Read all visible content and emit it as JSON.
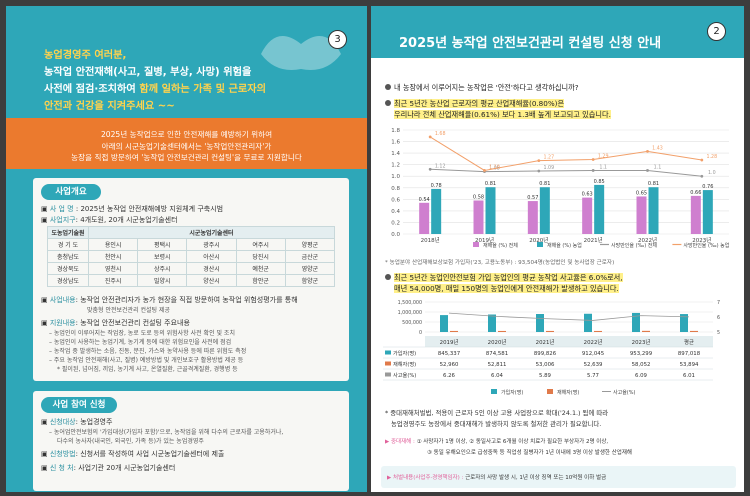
{
  "left": {
    "page_number": "3",
    "intro": {
      "line1": "농업경영주 여러분,",
      "line2": "농작업 안전재해(사고, 질병, 부상, 사망) 위험을",
      "line3_a": "사전에 점검·조치하여 ",
      "line3_b": "함께 일하는 가족 및 근로자의",
      "line4": "안전과 건강을 지켜주세요 ~~"
    },
    "banner": {
      "line1": "2025년 농작업으로 인한 안전재해를 예방하기 위하여",
      "line2": "아래의 시군농업기술센터에서는 '농작업안전관리자'가",
      "line3": "농장을 직접 방문하여 '농작업 안전보건관리 컨설팅'을 무료로 지원합니다"
    },
    "overview": {
      "pill": "사업개요",
      "project_key": "사 업 명",
      "project_val": ": 2025년 농작업 안전재해예방 지원체계 구축시범",
      "sites_key": "사업지구",
      "sites_val": ": 4개도원, 20개 시군농업기술센터",
      "table_header_do": "도농업기술원",
      "table_header_si": "시군농업기술센터",
      "rows": [
        [
          "경 기 도",
          "용인시",
          "평택시",
          "광주시",
          "여주시",
          "양평군"
        ],
        [
          "충청남도",
          "천안시",
          "보령시",
          "아산시",
          "당진시",
          "금산군"
        ],
        [
          "경상북도",
          "영천시",
          "상주시",
          "경산시",
          "예천군",
          "영양군"
        ],
        [
          "경상남도",
          "진주시",
          "밀양시",
          "양산시",
          "함안군",
          "함양군"
        ]
      ],
      "content_key": "사업내용",
      "content_val": ": 농작업 안전관리자가 농가 현장을 직접 방문하여 농작업 위험성평가를 통해",
      "content_val2": "맞춤형 안전보건관리 컨설팅 제공",
      "support_key": "지원내용",
      "support_val": ": 농작업 안전보건관리 컨설팅 주요내용",
      "support_items": [
        "– 농업인이 이루어지는 작업장, 농로 도로 등의 위험사항 사전 확인 및 조치",
        "– 농업인이 사용하는 농업기계, 농기계 등에 대한 위험요인을 사전에 점검",
        "– 농작업 중 발생하는 소음, 진동, 분진, 가스와 농약사용 등에 따른 위험도 측정",
        "– 주요 농작업 안전재해(사고, 질병) 예방방법 및 개인보호구 활용방법 제공 등",
        "* 필이된, 넘어짐, 끼임, 농기계 사고, 온열질환, 근골격계질환, 경행병 등"
      ]
    },
    "apply": {
      "pill": "사업 참여 신청",
      "target_key": "신청대상",
      "target_val": ": 농업경영주",
      "target_sub1": "– 농어업안전보험의 '가입대상(가입자 포함)'으로, 농작업을 위해 다수의 근로자를 고용하거나,",
      "target_sub2": "다수의 농사자(내국인, 외국인, 가족 등)가 있는 농업경영주",
      "method_key": "신청방법",
      "method_val": ": 신청서를 작성하여 사업 시군농업기술센터에 제출",
      "place_key": "신 청 처",
      "place_val": ": 사업기관 20개 시군농업기술센터"
    }
  },
  "right": {
    "page_number": "2",
    "title": "2025년 농작업 안전보건관리 컨설팅 신청 안내",
    "q1": "내 농장에서 이루어지는 농작업은 '안전'하다고 생각하십니까?",
    "q2_line1": "최근 5년간 농산업 근로자의 평균 산업재해율(0.80%)은",
    "q2_line2": "우리나라 전체 산업재해율(0.61%) 보다 1.3배 높게 보고되고 있습니다.",
    "chart1_note": "* 농업분야 산업재해보상보험 가입자('23, 고용노동부) : 93,504명(농업법인 및 농사업장 근로자)",
    "q3_line1": "최근 5년간 농업인안전보험 가입 농업인의 평균 농작업 사고율은 6.0%로서,",
    "q3_line2": "매년 54,000명, 매일 150명의 농업인에게 안전재해가 발생하고 있습니다.",
    "note_a1": "* 중대재해처벌법, 적용이 근로자 5인 이상 고용 사업장으로 확대('24.1.) 됨에 따라",
    "note_a2": "농업경영주도 농장에서 중대재해가 발생하지 않도록 철저한 관리가 필요합니다.",
    "serious_label": "▶ 중대재해 :",
    "serious_1": "① 사망자가 1명 이상, ② 동일사고로 6개월 이상 치료가 필요한 부상자가 2명 이상,",
    "serious_2": "③ 동일 유해요인으로 급성중독 등 직업성 질병자가 1년 이내에 3명 이상 발생한 산업재해",
    "penalty_label": "▶ 처벌내용(사업주·경영책임자) :",
    "penalty_val": "근로자의 사망 발생 시, 1년 이상 징역 또는 10억원 이하 벌금"
  },
  "chart_data": [
    {
      "type": "bar",
      "categories": [
        "2018년",
        "2019년",
        "2020년",
        "2021년",
        "2022년",
        "2023년"
      ],
      "ylim": [
        0,
        1.8
      ],
      "series": [
        {
          "name": "재해율 (%) 전체",
          "kind": "bar",
          "color": "#cf7fcf",
          "values": [
            0.54,
            0.58,
            0.57,
            0.63,
            0.65,
            0.66
          ]
        },
        {
          "name": "재해율 (%) 농업",
          "kind": "bar",
          "color": "#2ea7b8",
          "values": [
            0.78,
            0.81,
            0.81,
            0.85,
            0.81,
            0.76
          ]
        },
        {
          "name": "사망만인율 (‰) 전체",
          "kind": "line",
          "color": "#999999",
          "values": [
            1.12,
            1.08,
            1.09,
            1.1,
            1.1,
            1.0
          ]
        },
        {
          "name": "사망만인율 (‰) 농업",
          "kind": "line",
          "color": "#f2a06a",
          "values": [
            1.68,
            1.1,
            1.27,
            1.29,
            1.43,
            1.28
          ]
        }
      ],
      "line_labels_total": [
        "1.12",
        "1.08",
        "1.09",
        "1.1",
        "1.1",
        "1.0"
      ],
      "line_labels_agri": [
        "1.68",
        "1.10",
        "1.27",
        "1.29",
        "1.43",
        "1.28"
      ]
    },
    {
      "type": "table",
      "categories": [
        "2019년",
        "2020년",
        "2021년",
        "2022년",
        "2023년",
        "평균"
      ],
      "rows": [
        {
          "name": "가입자(명)",
          "values": [
            "845,337",
            "874,581",
            "899,826",
            "912,045",
            "953,299",
            "897,018"
          ]
        },
        {
          "name": "재해자(명)",
          "values": [
            "52,960",
            "52,811",
            "53,006",
            "52,639",
            "58,052",
            "53,894"
          ]
        },
        {
          "name": "사고율(%)",
          "values": [
            "6.26",
            "6.04",
            "5.89",
            "5.77",
            "6.09",
            "6.01"
          ]
        }
      ],
      "y_ticks": [
        "1,500,000",
        "1,000,000",
        "500,000",
        "0"
      ],
      "y2_ticks": [
        "7",
        "6",
        "5"
      ],
      "legend": [
        "가입자(명)",
        "재해자(명)",
        "사고율(%)"
      ],
      "subscribers": [
        845337,
        874581,
        899826,
        912045,
        953299,
        897018
      ],
      "victims": [
        52960,
        52811,
        53006,
        52639,
        58052,
        53894
      ],
      "rates": [
        6.26,
        6.04,
        5.89,
        5.77,
        6.09,
        6.01
      ]
    }
  ]
}
